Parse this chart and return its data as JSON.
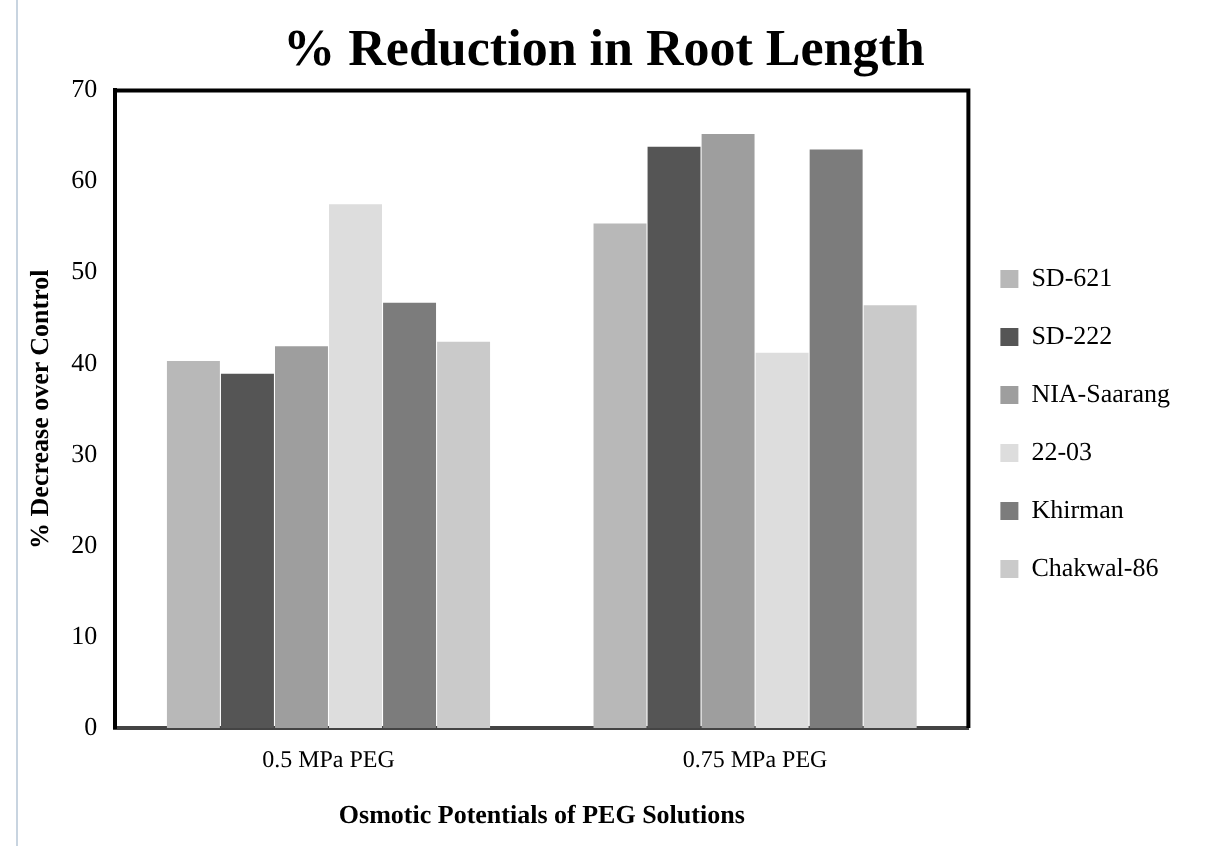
{
  "chart_data": {
    "type": "bar",
    "title": "% Reduction in Root Length",
    "xlabel": "Osmotic Potentials of PEG Solutions",
    "ylabel": "% Decrease over Control",
    "categories": [
      "0.5 MPa PEG",
      "0.75 MPa PEG"
    ],
    "series": [
      {
        "name": "SD-621",
        "color": "#b8b8b8",
        "values": [
          40.3,
          55.4
        ]
      },
      {
        "name": "SD-222",
        "color": "#555555",
        "values": [
          38.9,
          63.8
        ]
      },
      {
        "name": "NIA-Saarang",
        "color": "#9e9e9e",
        "values": [
          41.9,
          65.2
        ]
      },
      {
        "name": "22-03",
        "color": "#dddddd",
        "values": [
          57.5,
          41.2
        ]
      },
      {
        "name": "Khirman",
        "color": "#7c7c7c",
        "values": [
          46.7,
          63.5
        ]
      },
      {
        "name": "Chakwal-86",
        "color": "#cacaca",
        "values": [
          42.4,
          46.4
        ]
      }
    ],
    "ylim": [
      0,
      70
    ],
    "yticks": [
      0,
      10,
      20,
      30,
      40,
      50,
      60,
      70
    ],
    "grid": false,
    "legend": "right"
  }
}
